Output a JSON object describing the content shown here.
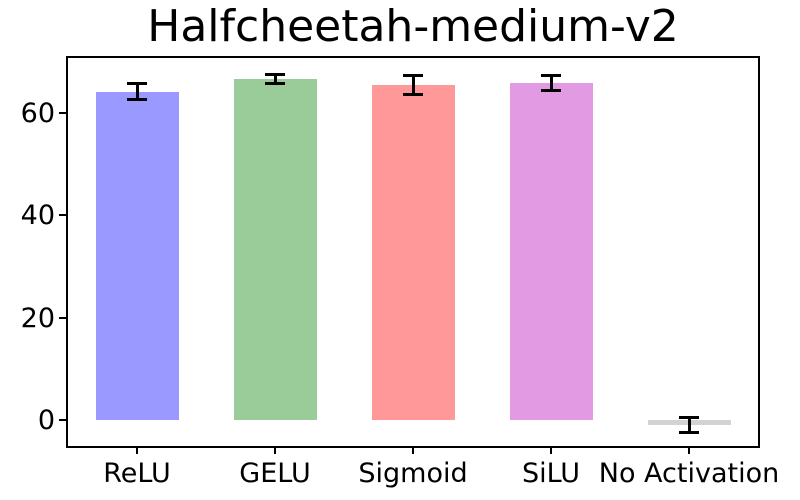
{
  "chart_data": {
    "type": "bar",
    "title": "Halfcheetah-medium-v2",
    "categories": [
      "ReLU",
      "GELU",
      "Sigmoid",
      "SiLU",
      "No Activation"
    ],
    "values": [
      64.1,
      66.6,
      65.4,
      65.8,
      -1.0
    ],
    "errors": [
      1.6,
      0.9,
      1.8,
      1.4,
      1.5
    ],
    "bar_colors": [
      "#9999ff",
      "#99cc99",
      "#ff9999",
      "#e29ae2",
      "#d3d3d3"
    ],
    "error_bar_color": "#000000",
    "xlabel": "",
    "ylabel": "",
    "yticks": [
      0,
      20,
      40,
      60
    ],
    "ylim": [
      -5.1,
      70.7
    ],
    "grid": false,
    "legend_position": "none"
  }
}
